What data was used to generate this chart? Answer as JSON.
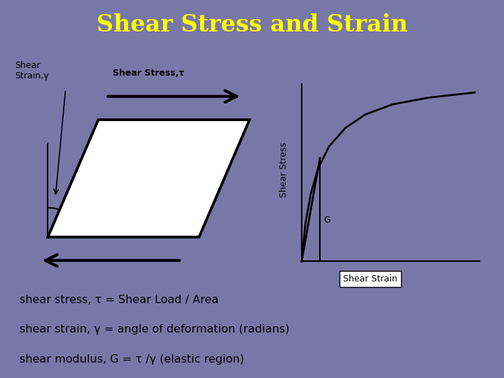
{
  "background_color": "#7878a8",
  "title": "Shear Stress and Strain",
  "title_color": "#ffff00",
  "title_fontsize": 24,
  "left_panel_bg": "#ffffff",
  "right_panel_bg": "#ffffff",
  "bottom_panel_bg": "#ffffff",
  "shear_stress_label": "Shear Stress,τ",
  "shear_strain_label": "Shear\nStrain,γ",
  "ylabel_graph": "Shear Stress",
  "xlabel_graph": "Shear Strain",
  "G_label": "G",
  "bottom_lines": [
    "shear stress, τ = Shear Load / Area",
    "shear strain, γ = angle of deformation (radians)",
    "shear modulus, G = τ /γ (elastic region)"
  ],
  "curve_x": [
    0.0,
    0.04,
    0.1,
    0.18,
    0.3,
    0.48,
    0.7,
    1.0,
    1.4,
    1.9
  ],
  "curve_y": [
    0.0,
    0.22,
    0.4,
    0.55,
    0.68,
    0.79,
    0.87,
    0.93,
    0.97,
    1.0
  ]
}
